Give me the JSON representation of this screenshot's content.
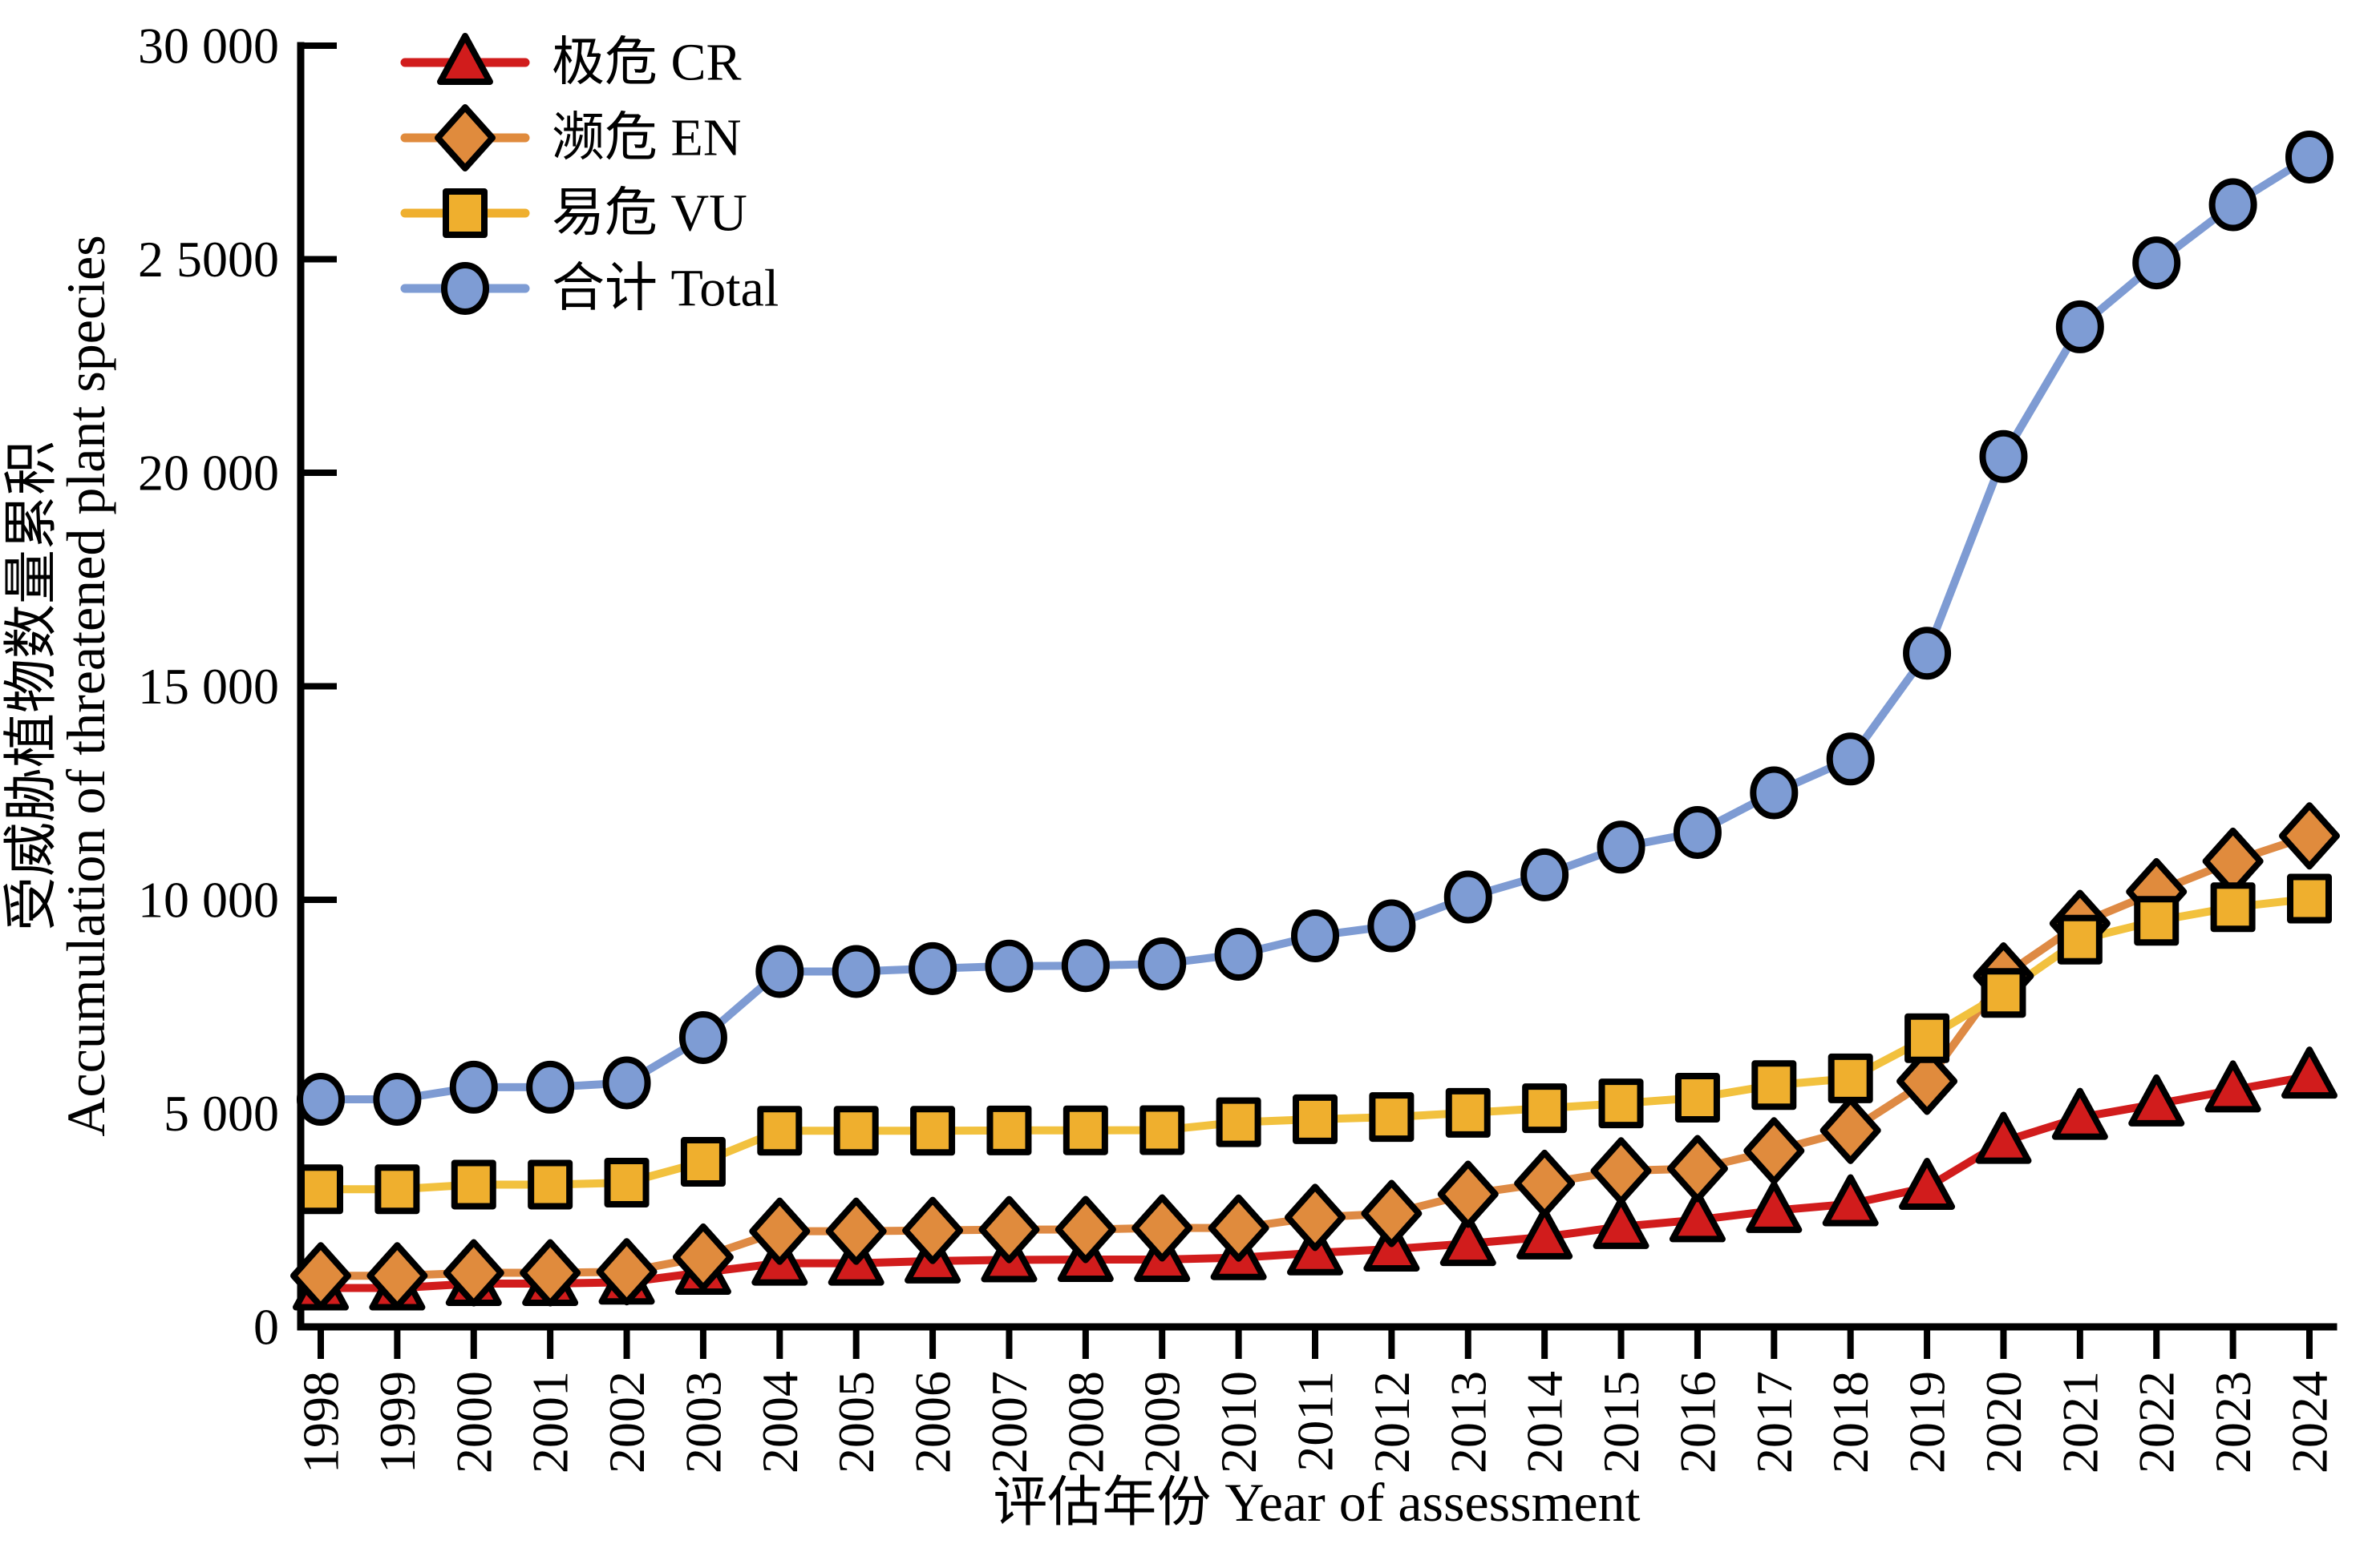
{
  "figure": {
    "background": "#ffffff",
    "y_axis": {
      "label_zh": "受威胁植物数量累积",
      "label_en": "Accumulation of threatened plant species",
      "ticks": [
        {
          "value": 0,
          "label": "0"
        },
        {
          "value": 5000,
          "label": "5 000"
        },
        {
          "value": 10000,
          "label": "10 000"
        },
        {
          "value": 15000,
          "label": "15 000"
        },
        {
          "value": 20000,
          "label": "20 000"
        },
        {
          "value": 25000,
          "label": "2 5000"
        },
        {
          "value": 30000,
          "label": "30 000"
        }
      ]
    },
    "x_axis": {
      "label": "评估年份 Year of assessment"
    },
    "legend": [
      {
        "label": "极危 CR",
        "marker": "triangle",
        "color": "#D11C1C"
      },
      {
        "label": "濒危 EN",
        "marker": "diamond",
        "color": "#E08B3D"
      },
      {
        "label": "易危 VU",
        "marker": "square",
        "color": "#EFAF2E"
      },
      {
        "label": "合计 Total",
        "marker": "circle",
        "color": "#7E9CD4"
      }
    ]
  },
  "chart_data": {
    "type": "line",
    "title": "",
    "xlabel": "评估年份 Year of assessment",
    "ylabel_zh": "受威胁植物数量累积",
    "ylabel_en": "Accumulation of threatened plant species",
    "ylim": [
      0,
      30000
    ],
    "grid": false,
    "legend_position": "top-left",
    "x": [
      1998,
      1999,
      2000,
      2001,
      2002,
      2003,
      2004,
      2005,
      2006,
      2007,
      2008,
      2009,
      2010,
      2011,
      2012,
      2013,
      2014,
      2015,
      2016,
      2017,
      2018,
      2019,
      2020,
      2021,
      2022,
      2023,
      2024
    ],
    "series": [
      {
        "key": "CR",
        "name": "极危 CR",
        "marker": "triangle",
        "line_color": "#D11C1C",
        "fill_color": "#D11C1C",
        "values": [
          909,
          909,
          1014,
          1014,
          1046,
          1276,
          1490,
          1490,
          1541,
          1569,
          1575,
          1577,
          1619,
          1731,
          1821,
          1948,
          2104,
          2347,
          2506,
          2722,
          2879,
          3264,
          4342,
          4903,
          5218,
          5546,
          5869
        ]
      },
      {
        "key": "EN",
        "name": "濒危 EN",
        "marker": "diamond",
        "line_color": "#DE8A44",
        "fill_color": "#E08B3D",
        "values": [
          1197,
          1197,
          1266,
          1266,
          1291,
          1634,
          2239,
          2239,
          2258,
          2278,
          2280,
          2316,
          2313,
          2564,
          2655,
          3106,
          3361,
          3654,
          3706,
          4122,
          4600,
          5751,
          8217,
          9446,
          10189,
          10904,
          11497
        ]
      },
      {
        "key": "VU",
        "name": "易危 VU",
        "marker": "square",
        "line_color": "#F2C13E",
        "fill_color": "#EFAF2E",
        "values": [
          3222,
          3222,
          3331,
          3331,
          3377,
          3864,
          4592,
          4592,
          4591,
          4600,
          4602,
          4607,
          4792,
          4861,
          4914,
          5011,
          5119,
          5232,
          5365,
          5661,
          5818,
          6759,
          7820,
          9067,
          9507,
          9826,
          10027
        ]
      },
      {
        "key": "Total",
        "name": "合计 Total",
        "marker": "circle",
        "line_color": "#7E9BD3",
        "fill_color": "#7E9CD4",
        "values": [
          5328,
          5328,
          5611,
          5611,
          5714,
          6774,
          8321,
          8321,
          8390,
          8447,
          8457,
          8500,
          8724,
          9156,
          9390,
          10065,
          10584,
          11233,
          11577,
          12505,
          13297,
          15774,
          20379,
          23416,
          24914,
          26276,
          27393
        ]
      }
    ]
  }
}
